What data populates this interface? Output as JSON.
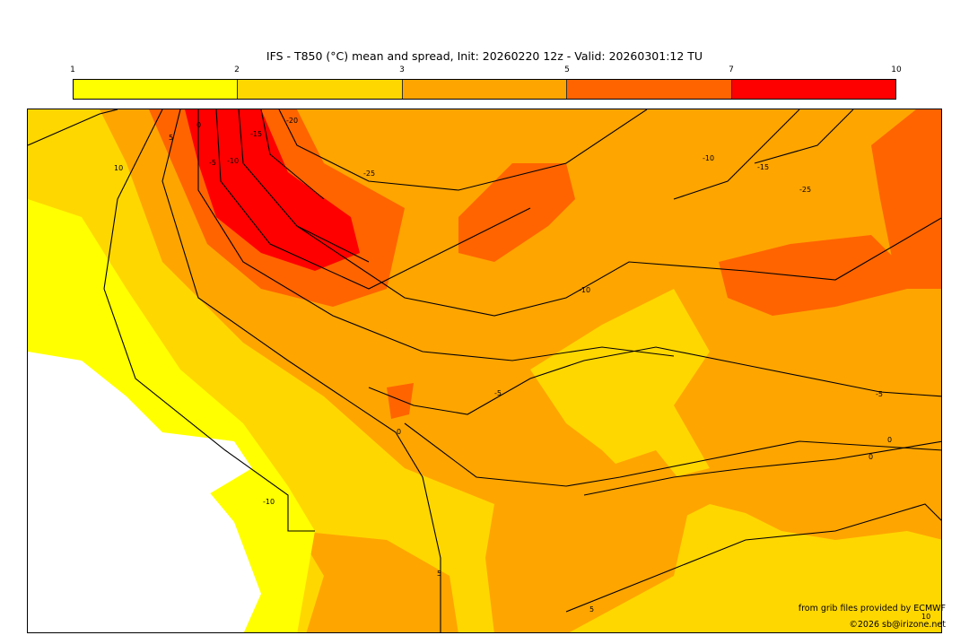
{
  "title": "IFS - T850 (°C) mean and spread, Init: 20260220 12z - Valid: 20260301:12 TU",
  "colorbar": {
    "ticks": [
      "1",
      "2",
      "3",
      "5",
      "7",
      "10"
    ],
    "colors": [
      "#ffff00",
      "#ffd700",
      "#ffa500",
      "#ff6400",
      "#ff0000"
    ]
  },
  "contour_labels": [
    "10",
    "5",
    "0",
    "-5",
    "-10",
    "-15",
    "-20",
    "-25",
    "-10",
    "-15",
    "-25",
    "-10",
    "-5",
    "0",
    "-5",
    "0",
    "0",
    "-10",
    "5",
    "5",
    "10"
  ],
  "credits": {
    "source": "from grib files provided by ECMWF",
    "copyright": "©2026 sb@irizone.net"
  }
}
